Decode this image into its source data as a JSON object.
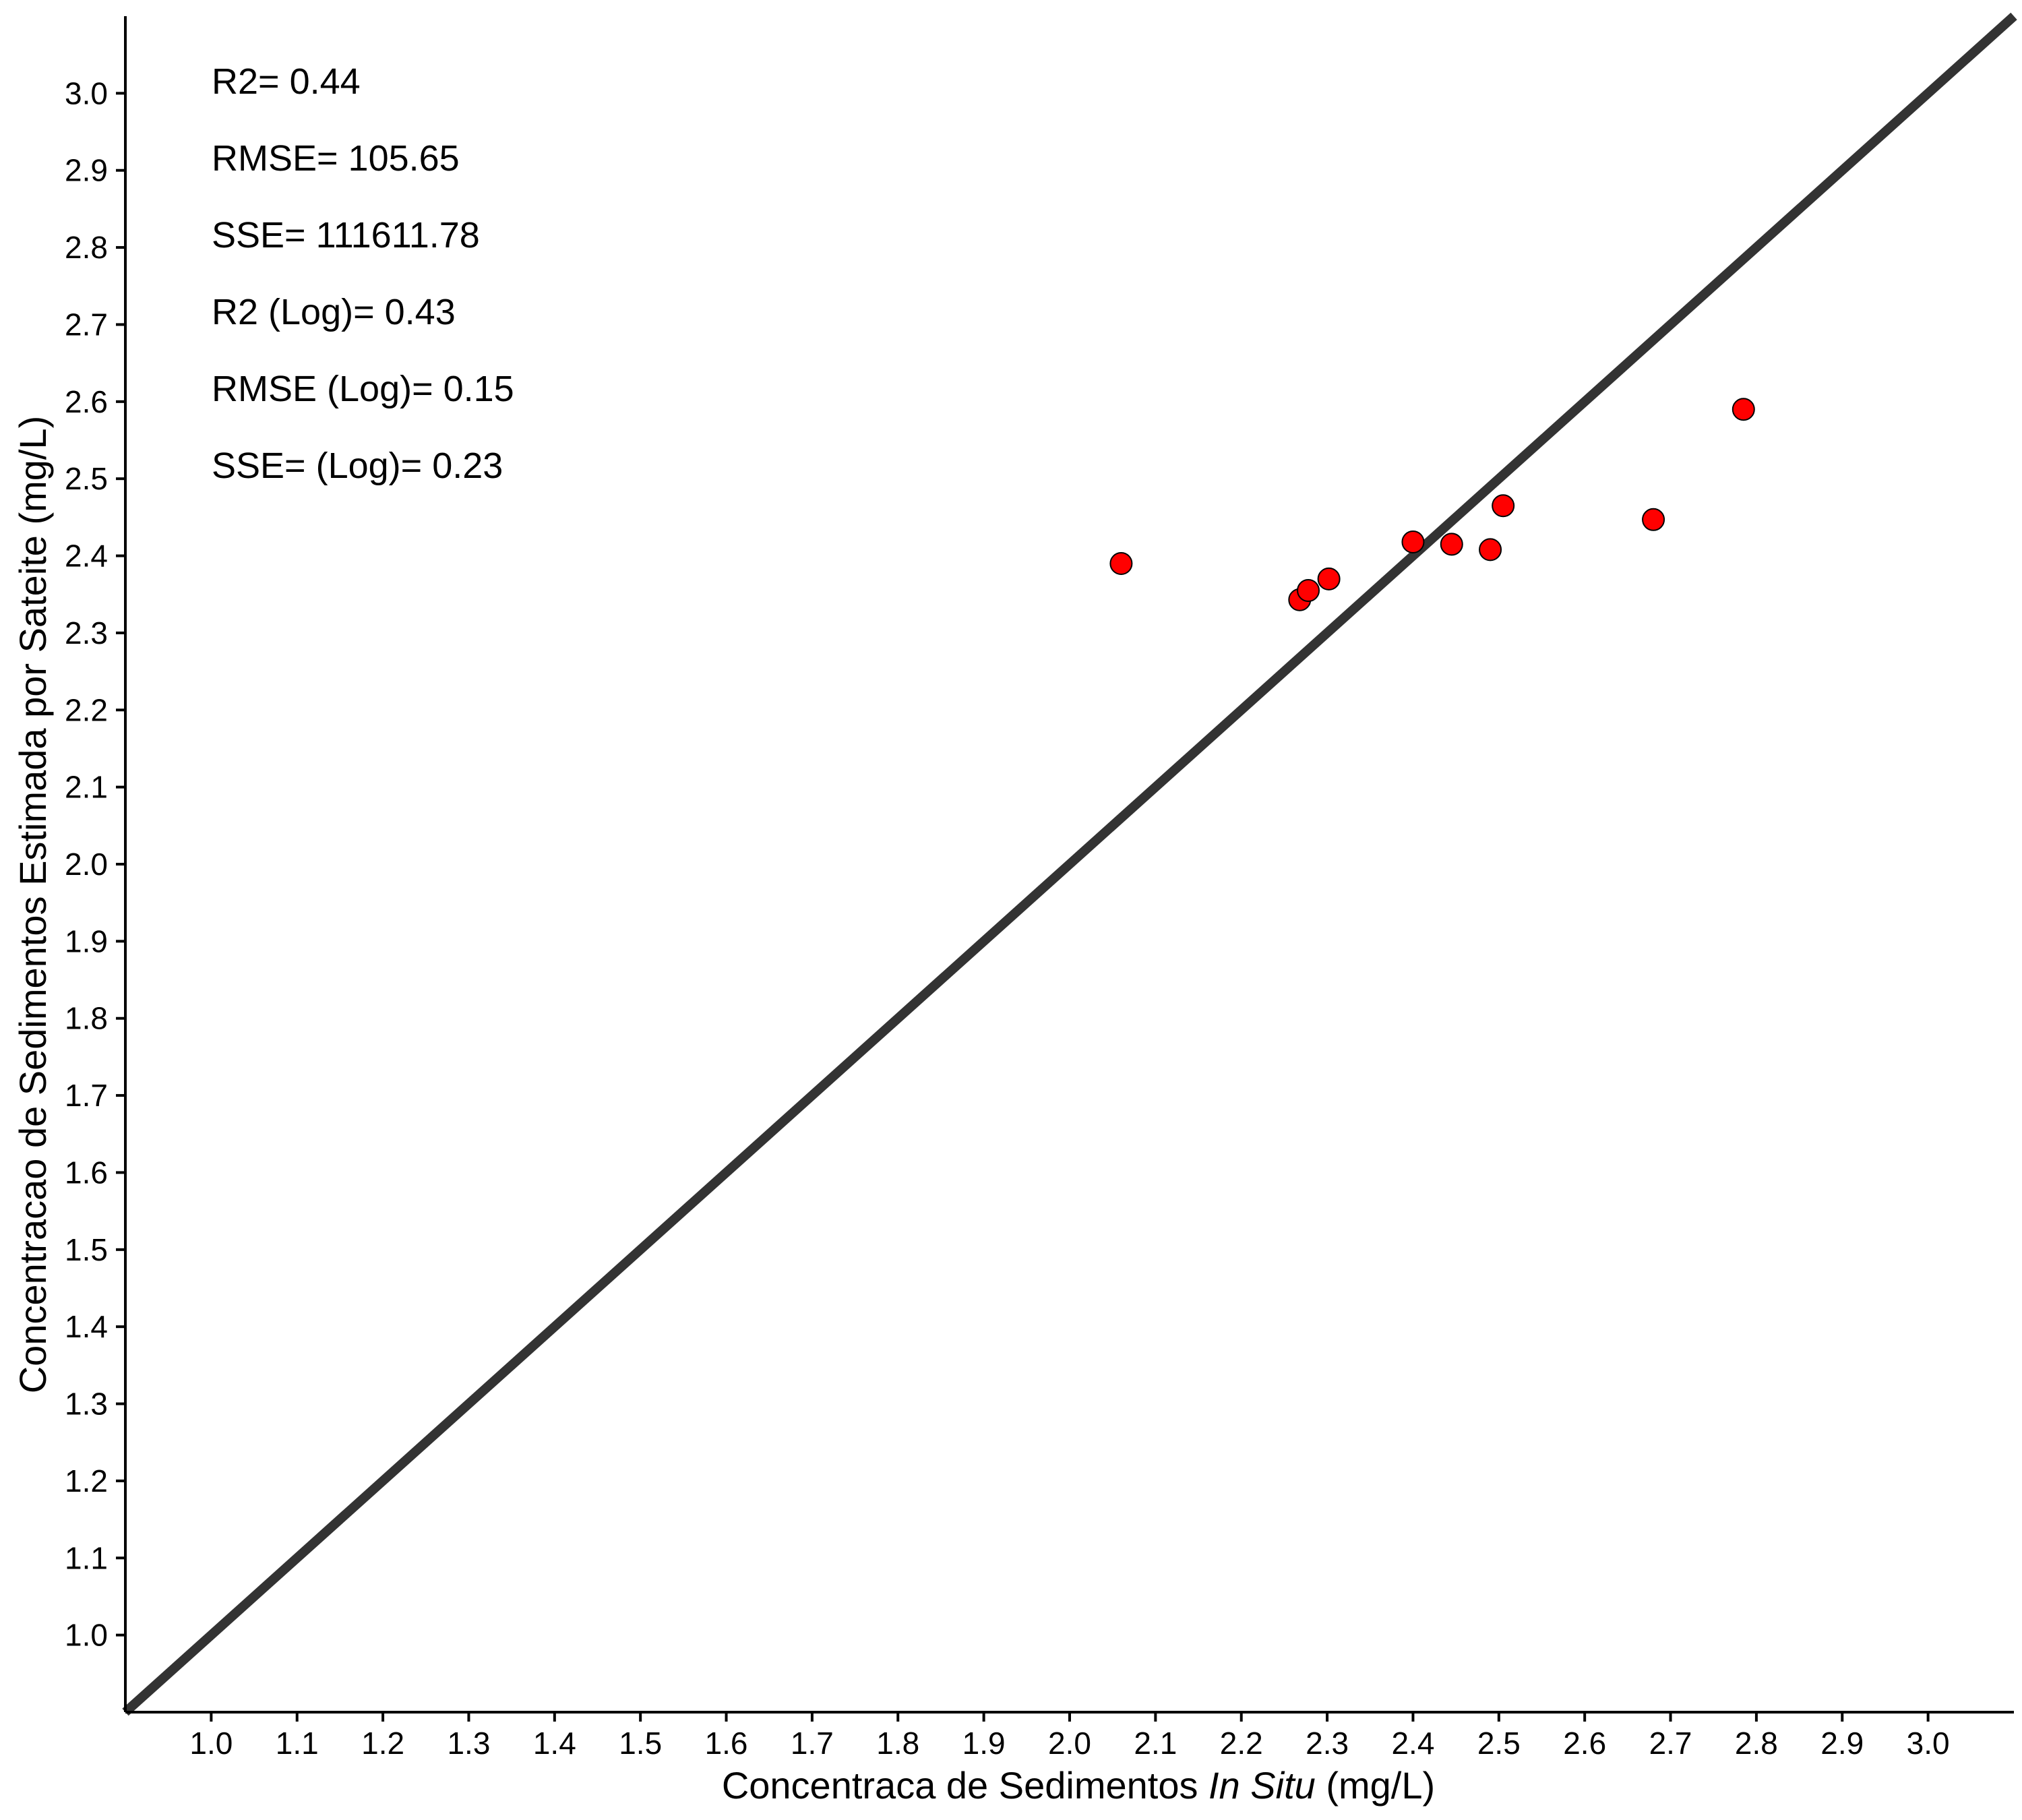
{
  "chart_data": {
    "type": "scatter",
    "title": "",
    "xlabel_parts": [
      {
        "text": "Concentraca de Sedimentos ",
        "italic": false
      },
      {
        "text": "In Situ",
        "italic": true
      },
      {
        "text": " (mg/L)",
        "italic": false
      }
    ],
    "ylabel": "Concentracao de Sedimentos Estimada por Sateite (mg/L)",
    "xlim": [
      0.9,
      3.1
    ],
    "ylim": [
      0.9,
      3.1
    ],
    "x_ticks": [
      "1.0",
      "1.1",
      "1.2",
      "1.3",
      "1.4",
      "1.5",
      "1.6",
      "1.7",
      "1.8",
      "1.9",
      "2.0",
      "2.1",
      "2.2",
      "2.3",
      "2.4",
      "2.5",
      "2.6",
      "2.7",
      "2.8",
      "2.9",
      "3.0"
    ],
    "y_ticks": [
      "1.0",
      "1.1",
      "1.2",
      "1.3",
      "1.4",
      "1.5",
      "1.6",
      "1.7",
      "1.8",
      "1.9",
      "2.0",
      "2.1",
      "2.2",
      "2.3",
      "2.4",
      "2.5",
      "2.6",
      "2.7",
      "2.8",
      "2.9",
      "3.0"
    ],
    "grid": false,
    "reference_line": {
      "type": "identity",
      "from": [
        0.9,
        0.9
      ],
      "to": [
        3.1,
        3.1
      ],
      "color": "#333333"
    },
    "points": [
      {
        "x": 2.06,
        "y": 2.39
      },
      {
        "x": 2.268,
        "y": 2.343
      },
      {
        "x": 2.278,
        "y": 2.355
      },
      {
        "x": 2.302,
        "y": 2.37
      },
      {
        "x": 2.4,
        "y": 2.418
      },
      {
        "x": 2.445,
        "y": 2.415
      },
      {
        "x": 2.49,
        "y": 2.408
      },
      {
        "x": 2.505,
        "y": 2.465
      },
      {
        "x": 2.68,
        "y": 2.447
      },
      {
        "x": 2.785,
        "y": 2.59
      }
    ],
    "point_color": "#ff0000",
    "point_edge_color": "#000000",
    "annotations": [
      "R2= 0.44",
      "RMSE= 105.65",
      "SSE= 111611.78",
      "R2 (Log)= 0.43",
      "RMSE (Log)= 0.15",
      "SSE=  (Log)= 0.23"
    ]
  }
}
